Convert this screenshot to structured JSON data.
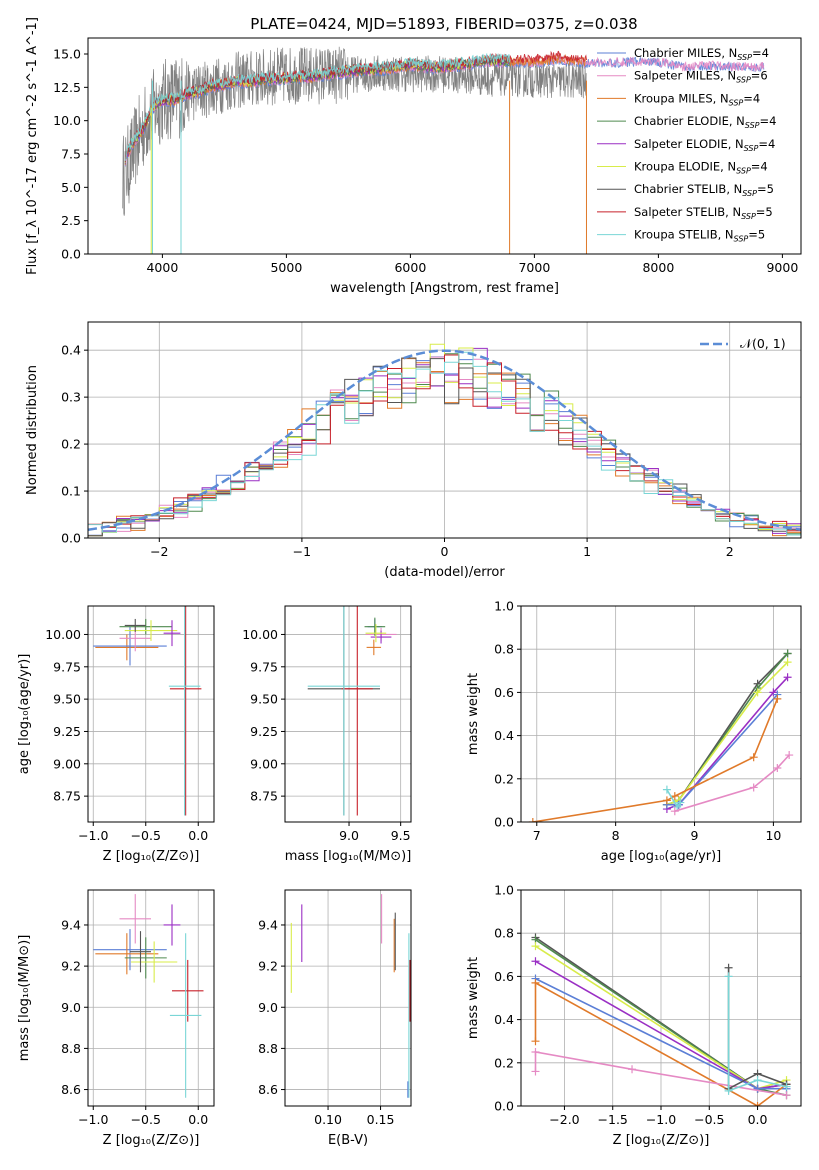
{
  "title": "PLATE=0424, MJD=51893, FIBERID=0375, z=0.038",
  "colors": {
    "Chabrier MILES": "#5b7fd6",
    "Salpeter MILES": "#e58ac4",
    "Kroupa MILES": "#e07a2a",
    "Chabrier ELODIE": "#4f8a4f",
    "Salpeter ELODIE": "#9a2fc4",
    "Kroupa ELODIE": "#d8ec4a",
    "Chabrier STELIB": "#555555",
    "Salpeter STELIB": "#c8202a",
    "Kroupa STELIB": "#7ad6d6",
    "normal": "#5b8dd6"
  },
  "chart_data": [
    {
      "id": "spectrum",
      "type": "line",
      "xlabel": "wavelength [Angstrom, rest frame]",
      "ylabel": "Flux [f_λ 10^-17 erg cm^-2 s^-1 A^-1]",
      "xlim": [
        3400,
        9150
      ],
      "ylim": [
        0,
        16.2
      ],
      "xticks": [
        4000,
        5000,
        6000,
        7000,
        8000,
        9000
      ],
      "yticks": [
        0.0,
        2.5,
        5.0,
        7.5,
        10.0,
        12.5,
        15.0
      ],
      "grid": false,
      "legend_position": "top-right",
      "legend": [
        {
          "label": "Chabrier MILES, N",
          "sub": "SSP",
          "eq": "=4",
          "color_key": "Chabrier MILES"
        },
        {
          "label": "Salpeter MILES, N",
          "sub": "SSP",
          "eq": "=6",
          "color_key": "Salpeter MILES"
        },
        {
          "label": "Kroupa MILES, N",
          "sub": "SSP",
          "eq": "=4",
          "color_key": "Kroupa MILES"
        },
        {
          "label": "Chabrier ELODIE, N",
          "sub": "SSP",
          "eq": "=4",
          "color_key": "Chabrier ELODIE"
        },
        {
          "label": "Salpeter ELODIE, N",
          "sub": "SSP",
          "eq": "=4",
          "color_key": "Salpeter ELODIE"
        },
        {
          "label": "Kroupa ELODIE, N",
          "sub": "SSP",
          "eq": "=4",
          "color_key": "Kroupa ELODIE"
        },
        {
          "label": "Chabrier STELIB, N",
          "sub": "SSP",
          "eq": "=5",
          "color_key": "Chabrier STELIB"
        },
        {
          "label": "Salpeter STELIB, N",
          "sub": "SSP",
          "eq": "=5",
          "color_key": "Salpeter STELIB"
        },
        {
          "label": "Kroupa STELIB, N",
          "sub": "SSP",
          "eq": "=5",
          "color_key": "Kroupa STELIB"
        }
      ],
      "data_gray": {
        "x": [
          3700,
          3800,
          3900,
          4000,
          4200,
          4400,
          4600,
          4800,
          5000,
          5200,
          5400,
          5600,
          5800,
          6000,
          6200,
          6400,
          6600,
          6800,
          7000,
          7200,
          7400
        ],
        "y": [
          6.0,
          8.5,
          10.5,
          11.5,
          12.0,
          12.5,
          13.0,
          13.2,
          13.4,
          13.4,
          13.4,
          13.5,
          13.6,
          13.5,
          13.5,
          13.4,
          13.2,
          13.2,
          13.1,
          13.0,
          13.0
        ]
      },
      "model_spectrum": {
        "x": [
          3680,
          3750,
          3800,
          3850,
          3900,
          3950,
          4000,
          4100,
          4200,
          4300,
          4400,
          4500,
          4600,
          4700,
          4800,
          5000,
          5200,
          5400,
          5600,
          5800,
          6000,
          6200,
          6400,
          6600,
          6800,
          7000,
          7200,
          7400,
          7600,
          7800,
          8000,
          8200,
          8400,
          8600,
          8800
        ],
        "y": [
          6.5,
          8.0,
          8.6,
          9.3,
          10.4,
          11.1,
          11.3,
          11.4,
          11.8,
          12.0,
          12.4,
          12.5,
          12.8,
          12.7,
          12.9,
          13.0,
          13.1,
          13.4,
          13.6,
          13.7,
          14.0,
          13.8,
          14.0,
          14.3,
          14.3,
          14.3,
          14.5,
          14.3,
          14.3,
          14.4,
          14.4,
          14.0,
          14.1,
          14.0,
          14.0
        ]
      },
      "model_dip_x": [
        3920,
        4150,
        6800,
        7420
      ]
    },
    {
      "id": "residuals",
      "type": "line",
      "xlabel": "(data-model)/error",
      "ylabel": "Normed distribution",
      "xlim": [
        -2.5,
        2.5
      ],
      "ylim": [
        0,
        0.46
      ],
      "xticks": [
        -2,
        -1,
        0,
        1,
        2
      ],
      "yticks": [
        0.0,
        0.1,
        0.2,
        0.3,
        0.4
      ],
      "grid": true,
      "legend_position": "top-right",
      "curve_label": "𝒩(0, 1)",
      "bin_edges": [
        -2.5,
        -2.4,
        -2.3,
        -2.2,
        -2.1,
        -2.0,
        -1.9,
        -1.8,
        -1.7,
        -1.6,
        -1.5,
        -1.4,
        -1.3,
        -1.2,
        -1.1,
        -1.0,
        -0.9,
        -0.8,
        -0.7,
        -0.6,
        -0.5,
        -0.4,
        -0.3,
        -0.2,
        -0.1,
        0.0,
        0.1,
        0.2,
        0.3,
        0.4,
        0.5,
        0.6,
        0.7,
        0.8,
        0.9,
        1.0,
        1.1,
        1.2,
        1.3,
        1.4,
        1.5,
        1.6,
        1.7,
        1.8,
        1.9,
        2.0,
        2.1,
        2.2,
        2.3,
        2.4,
        2.5
      ]
    },
    {
      "id": "age-vs-Z",
      "type": "scatter",
      "xlabel": "Z [log₁₀(Z/Z⊙)]",
      "ylabel": "age  [log₁₀(age/yr)]",
      "xlim": [
        -1.05,
        0.15
      ],
      "ylim": [
        8.55,
        10.22
      ],
      "xticks": [
        -1.0,
        -0.5,
        0.0
      ],
      "yticks": [
        8.75,
        9.0,
        9.25,
        9.5,
        9.75,
        10.0
      ],
      "grid": true,
      "points": [
        {
          "key": "Kroupa MILES",
          "x": -0.68,
          "y": 9.9,
          "xerr": 0.3,
          "yerr": 0.1
        },
        {
          "key": "Chabrier MILES",
          "x": -0.65,
          "y": 9.91,
          "xerr": 0.35,
          "yerr": 0.15
        },
        {
          "key": "Salpeter MILES",
          "x": -0.6,
          "y": 9.97,
          "xerr": 0.15,
          "yerr": 0.1
        },
        {
          "key": "Chabrier ELODIE",
          "x": -0.5,
          "y": 10.06,
          "xerr": 0.25,
          "yerr": 0.06
        },
        {
          "key": "Kroupa ELODIE",
          "x": -0.45,
          "y": 10.03,
          "xerr": 0.25,
          "yerr": 0.08
        },
        {
          "key": "Salpeter ELODIE",
          "x": -0.25,
          "y": 10.01,
          "xerr": 0.08,
          "yerr": 0.1
        },
        {
          "key": "Chabrier STELIB",
          "x": -0.6,
          "y": 10.07,
          "xerr": 0.1,
          "yerr": 0.05
        },
        {
          "key": "Salpeter STELIB",
          "x": -0.12,
          "y": 9.58,
          "xerr": 0.15,
          "yerr": 0.98
        },
        {
          "key": "Kroupa STELIB",
          "x": -0.13,
          "y": 9.6,
          "xerr": 0.15,
          "yerr": 1.0
        }
      ]
    },
    {
      "id": "age-vs-mass",
      "type": "scatter",
      "xlabel": "mass [log₁₀(M/M⊙)]",
      "ylabel": "",
      "xlim": [
        8.38,
        9.6
      ],
      "ylim": [
        8.55,
        10.22
      ],
      "xticks": [
        9.0,
        9.5
      ],
      "yticks": [
        8.75,
        9.0,
        9.25,
        9.5,
        9.75,
        10.0
      ],
      "grid": true,
      "points": [
        {
          "key": "Chabrier MILES",
          "x": 9.25,
          "y": 10.06,
          "xerr": 0.07,
          "yerr": 0.06
        },
        {
          "key": "Salpeter MILES",
          "x": 9.31,
          "y": 10.0,
          "xerr": 0.15,
          "yerr": 0.05
        },
        {
          "key": "Kroupa MILES",
          "x": 9.24,
          "y": 9.9,
          "xerr": 0.07,
          "yerr": 0.06
        },
        {
          "key": "Chabrier ELODIE",
          "x": 9.25,
          "y": 10.06,
          "xerr": 0.1,
          "yerr": 0.07
        },
        {
          "key": "Salpeter ELODIE",
          "x": 9.31,
          "y": 9.98,
          "xerr": 0.1,
          "yerr": 0.05
        },
        {
          "key": "Kroupa ELODIE",
          "x": 9.26,
          "y": 10.01,
          "xerr": 0.1,
          "yerr": 0.07
        },
        {
          "key": "Chabrier STELIB",
          "x": 8.95,
          "y": 9.58,
          "xerr": 0.35,
          "yerr": 0.98
        },
        {
          "key": "Salpeter STELIB",
          "x": 9.08,
          "y": 9.58,
          "xerr": 0.15,
          "yerr": 0.98
        },
        {
          "key": "Kroupa STELIB",
          "x": 8.95,
          "y": 9.6,
          "xerr": 0.35,
          "yerr": 1.0
        }
      ]
    },
    {
      "id": "mass-weight-vs-age",
      "type": "line",
      "xlabel": "age  [log₁₀(age/yr)]",
      "ylabel": "mass weight",
      "xlim": [
        6.8,
        10.35
      ],
      "ylim": [
        0,
        1.0
      ],
      "xticks": [
        7,
        8,
        9,
        10
      ],
      "yticks": [
        0.0,
        0.2,
        0.4,
        0.6,
        0.8,
        1.0
      ],
      "grid": true,
      "series": [
        {
          "key": "Chabrier STELIB",
          "x": [
            8.65,
            8.8,
            9.8,
            10.18
          ],
          "y": [
            0.08,
            0.1,
            0.64,
            0.78
          ]
        },
        {
          "key": "Chabrier ELODIE",
          "x": [
            8.65,
            8.8,
            9.8,
            10.18
          ],
          "y": [
            0.08,
            0.1,
            0.62,
            0.78
          ]
        },
        {
          "key": "Kroupa ELODIE",
          "x": [
            8.65,
            8.8,
            9.8,
            10.18
          ],
          "y": [
            0.08,
            0.1,
            0.6,
            0.74
          ]
        },
        {
          "key": "Salpeter ELODIE",
          "x": [
            8.65,
            8.8,
            10.0,
            10.18
          ],
          "y": [
            0.06,
            0.08,
            0.6,
            0.67
          ]
        },
        {
          "key": "Chabrier MILES",
          "x": [
            8.65,
            8.8,
            10.05
          ],
          "y": [
            0.08,
            0.08,
            0.59
          ]
        },
        {
          "key": "Kroupa MILES",
          "x": [
            6.95,
            8.65,
            8.75,
            9.75,
            10.05
          ],
          "y": [
            0.0,
            0.1,
            0.12,
            0.3,
            0.57
          ]
        },
        {
          "key": "Kroupa STELIB",
          "x": [
            8.65,
            8.78,
            8.82
          ],
          "y": [
            0.15,
            0.07,
            0.09
          ]
        },
        {
          "key": "Salpeter MILES",
          "x": [
            8.75,
            9.75,
            10.05,
            10.2
          ],
          "y": [
            0.05,
            0.16,
            0.25,
            0.31
          ]
        }
      ]
    },
    {
      "id": "mass-vs-Z",
      "type": "scatter",
      "xlabel": "Z [log₁₀(Z/Z⊙)]",
      "ylabel": "mass [log₁₀(M/M⊙)]",
      "xlim": [
        -1.05,
        0.15
      ],
      "ylim": [
        8.52,
        9.57
      ],
      "xticks": [
        -1.0,
        -0.5,
        0.0
      ],
      "yticks": [
        8.6,
        8.8,
        9.0,
        9.2,
        9.4
      ],
      "grid": true,
      "points": [
        {
          "key": "Chabrier MILES",
          "x": -0.65,
          "y": 9.28,
          "xerr": 0.35,
          "yerr": 0.1
        },
        {
          "key": "Salpeter MILES",
          "x": -0.6,
          "y": 9.43,
          "xerr": 0.15,
          "yerr": 0.12
        },
        {
          "key": "Kroupa MILES",
          "x": -0.68,
          "y": 9.26,
          "xerr": 0.3,
          "yerr": 0.1
        },
        {
          "key": "Chabrier ELODIE",
          "x": -0.5,
          "y": 9.24,
          "xerr": 0.2,
          "yerr": 0.1
        },
        {
          "key": "Salpeter ELODIE",
          "x": -0.25,
          "y": 9.4,
          "xerr": 0.08,
          "yerr": 0.1
        },
        {
          "key": "Kroupa ELODIE",
          "x": -0.42,
          "y": 9.22,
          "xerr": 0.22,
          "yerr": 0.1
        },
        {
          "key": "Chabrier STELIB",
          "x": -0.55,
          "y": 9.27,
          "xerr": 0.1,
          "yerr": 0.1
        },
        {
          "key": "Salpeter STELIB",
          "x": -0.1,
          "y": 9.08,
          "xerr": 0.15,
          "yerr": 0.15
        },
        {
          "key": "Kroupa STELIB",
          "x": -0.12,
          "y": 8.96,
          "xerr": 0.15,
          "yerr": 0.4
        }
      ]
    },
    {
      "id": "mass-vs-EBV",
      "type": "scatter",
      "xlabel": "E(B-V)",
      "ylabel": "",
      "xlim": [
        0.059,
        0.179
      ],
      "ylim": [
        8.52,
        9.57
      ],
      "xticks": [
        0.1,
        0.15
      ],
      "yticks": [
        8.6,
        8.8,
        9.0,
        9.2,
        9.4
      ],
      "grid": true,
      "points": [
        {
          "key": "Kroupa ELODIE",
          "x": 0.065,
          "y": 9.24,
          "yerr": 0.17
        },
        {
          "key": "Salpeter ELODIE",
          "x": 0.075,
          "y": 9.36,
          "yerr": 0.14
        },
        {
          "key": "Salpeter MILES",
          "x": 0.151,
          "y": 9.43,
          "yerr": 0.12
        },
        {
          "key": "Kroupa MILES",
          "x": 0.163,
          "y": 9.3,
          "yerr": 0.13
        },
        {
          "key": "Chabrier STELIB",
          "x": 0.164,
          "y": 9.32,
          "yerr": 0.14
        },
        {
          "key": "Kroupa STELIB",
          "x": 0.177,
          "y": 8.96,
          "yerr": 0.4
        },
        {
          "key": "Salpeter STELIB",
          "x": 0.178,
          "y": 9.08,
          "yerr": 0.15
        },
        {
          "key": "Chabrier MILES",
          "x": 0.176,
          "y": 8.6,
          "yerr": 0.04
        }
      ]
    },
    {
      "id": "mass-weight-vs-Z",
      "type": "line",
      "xlabel": "Z [log₁₀(Z/Z⊙)]",
      "ylabel": "mass weight",
      "xlim": [
        -2.45,
        0.45
      ],
      "ylim": [
        0,
        1.0
      ],
      "xticks": [
        -2.0,
        -1.5,
        -1.0,
        -0.5,
        0.0
      ],
      "yticks": [
        0.0,
        0.2,
        0.4,
        0.6,
        0.8,
        1.0
      ],
      "grid": true,
      "series": [
        {
          "key": "Chabrier STELIB",
          "x": [
            -2.3,
            0.0,
            0.3
          ],
          "y": [
            0.78,
            0.08,
            0.1
          ]
        },
        {
          "key": "Chabrier ELODIE",
          "x": [
            -2.3,
            0.0,
            0.3
          ],
          "y": [
            0.77,
            0.08,
            0.05
          ]
        },
        {
          "key": "Kroupa ELODIE",
          "x": [
            -2.3,
            0.0,
            0.3
          ],
          "y": [
            0.74,
            0.08,
            0.12
          ]
        },
        {
          "key": "Salpeter ELODIE",
          "x": [
            -2.3,
            0.0,
            0.3
          ],
          "y": [
            0.67,
            0.08,
            0.1
          ]
        },
        {
          "key": "Chabrier MILES",
          "x": [
            -2.3,
            0.0,
            0.3
          ],
          "y": [
            0.59,
            0.08,
            0.08
          ]
        },
        {
          "key": "Kroupa MILES",
          "x": [
            -2.3,
            -2.3,
            0.0,
            0.3
          ],
          "y": [
            0.3,
            0.57,
            0.0,
            0.1
          ]
        },
        {
          "key": "Salpeter MILES",
          "x": [
            -2.3,
            -2.3,
            -1.3,
            0.3
          ],
          "y": [
            0.16,
            0.25,
            0.17,
            0.05
          ]
        },
        {
          "key": "Chabrier STELIB",
          "x": [
            -0.3,
            -0.3,
            0.0,
            0.3
          ],
          "y": [
            0.64,
            0.08,
            0.15,
            0.1
          ]
        },
        {
          "key": "Kroupa STELIB",
          "x": [
            -0.3,
            -0.3,
            0.0,
            0.3
          ],
          "y": [
            0.6,
            0.07,
            0.12,
            0.09
          ]
        }
      ]
    }
  ]
}
